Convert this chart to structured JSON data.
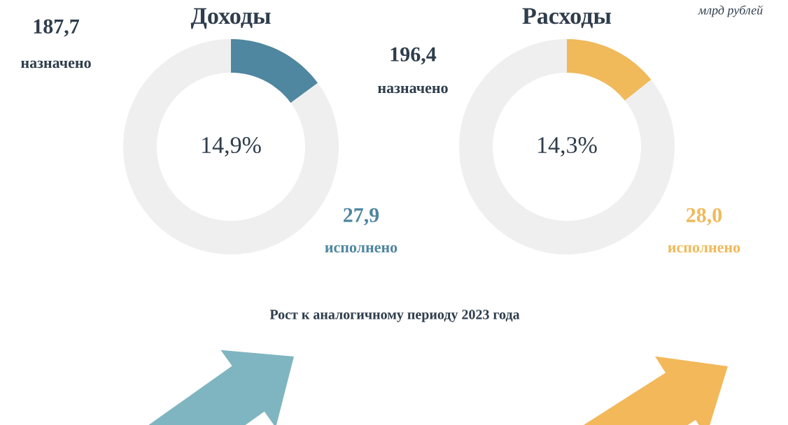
{
  "chart_data": [
    {
      "type": "donut",
      "title": "Доходы",
      "categories": [
        null,
        null
      ],
      "values": [
        14.9,
        85.1
      ],
      "colors": [
        "#4f86a0",
        "#efefef"
      ],
      "annotations": [
        "187,7",
        "назначено",
        "27,9",
        "исполнено",
        "14,9%",
        "Рост к аналогичному периоду 2023 года"
      ]
    },
    {
      "type": "donut",
      "title": "Расходы",
      "categories": [
        null,
        null
      ],
      "values": [
        14.3,
        85.7
      ],
      "colors": [
        "#f0b95a",
        "#efefef"
      ],
      "annotations": [
        "196,4",
        "назначено",
        "28,0",
        "исполнено",
        "14,3%",
        "млрд рублей"
      ]
    }
  ]
}
